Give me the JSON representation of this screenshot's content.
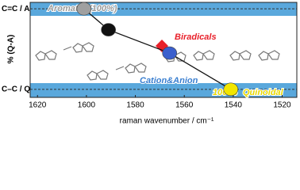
{
  "chart_data": {
    "type": "scatter",
    "xlabel": "raman wavenumber / cm⁻¹",
    "ylabel": "% (Q-A)",
    "xlim": [
      1623,
      1514
    ],
    "xticks": [
      1620,
      1600,
      1580,
      1560,
      1540,
      1520
    ],
    "ylim": [
      110,
      -8
    ],
    "yticks": [
      {
        "value": 0,
        "label": "C=C / A"
      },
      {
        "value": 100,
        "label": "C–C / Q"
      }
    ],
    "series": [
      {
        "name": "points",
        "colors": [
          "#a0a0a0",
          "#111111",
          "#3a5fcd",
          "#f2e600"
        ],
        "x": [
          1601,
          1591,
          1566,
          1541
        ],
        "values": [
          0,
          26,
          55,
          100
        ]
      }
    ],
    "annotations": [
      "Aromatic",
      "(100%)",
      "Biradicals",
      "Cation&Anion",
      "100 %",
      "Quinoidal"
    ]
  }
}
